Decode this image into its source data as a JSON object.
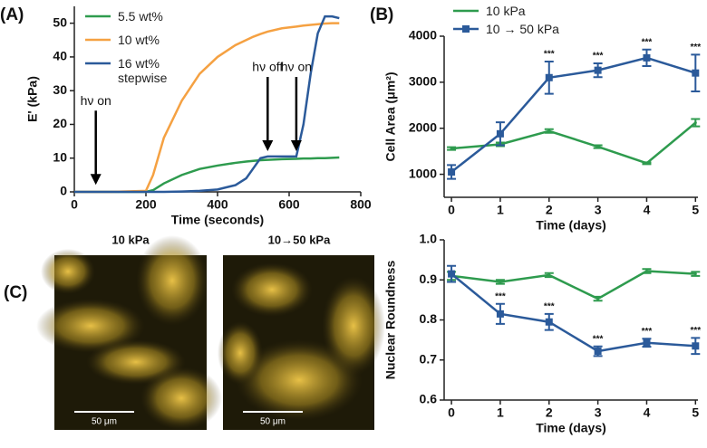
{
  "chart_data": [
    {
      "type": "line",
      "panel": "(A)",
      "xlabel": "Time (seconds)",
      "ylabel": "E' (kPa)",
      "x": [
        0,
        100,
        200,
        220,
        250,
        300,
        350,
        400,
        450,
        480,
        500,
        520,
        540,
        580,
        620,
        640,
        660,
        680,
        700,
        720,
        740
      ],
      "series": [
        {
          "name": "5.5 wt%",
          "color": "#2e9b4e",
          "values": [
            0,
            0,
            0,
            0.5,
            2.5,
            5,
            6.8,
            7.8,
            8.6,
            9,
            9.2,
            9.4,
            9.5,
            9.7,
            9.8,
            9.9,
            9.9,
            10,
            10,
            10.1,
            10.2
          ]
        },
        {
          "name": "10 wt%",
          "color": "#f5a142",
          "values": [
            0,
            0,
            0.3,
            5,
            16,
            27,
            35,
            40,
            43.5,
            45,
            46,
            46.8,
            47.5,
            48.5,
            49,
            49.3,
            49.5,
            49.7,
            49.9,
            50,
            50
          ]
        },
        {
          "name": "16 wt% stepwise",
          "color": "#2b5a9a",
          "values": [
            0,
            0,
            0,
            0,
            0,
            0.1,
            0.3,
            0.7,
            2,
            4,
            7,
            10,
            10.5,
            10.5,
            10.5,
            20,
            35,
            47,
            52,
            52,
            51.5
          ]
        }
      ],
      "annotations": [
        {
          "text": "hν on",
          "x": 60,
          "y": 1
        },
        {
          "text": "hν off",
          "x": 540,
          "y": 11
        },
        {
          "text": "hν on",
          "x": 620,
          "y": 11
        }
      ],
      "xlim": [
        0,
        800
      ],
      "xticks": [
        0,
        200,
        400,
        600,
        800
      ],
      "ylim": [
        0,
        55
      ],
      "yticks": [
        0,
        10,
        20,
        30,
        40,
        50
      ],
      "legend": "upper left"
    },
    {
      "type": "errorline",
      "panel": "(B)",
      "xlabel": "Time (days)",
      "ylabel": "Cell Area (μm²)",
      "x": [
        0,
        1,
        2,
        3,
        4,
        5
      ],
      "series": [
        {
          "name": "10 kPa",
          "color": "#2e9b4e",
          "values": [
            1560,
            1650,
            1940,
            1600,
            1240,
            2120
          ],
          "errors": [
            30,
            40,
            40,
            30,
            20,
            80
          ]
        },
        {
          "name": "10 → 50 kPa",
          "color": "#2b5a9a",
          "values": [
            1050,
            1880,
            3100,
            3260,
            3530,
            3200
          ],
          "errors": [
            150,
            250,
            350,
            150,
            180,
            400
          ],
          "significance": [
            null,
            null,
            "***",
            "***",
            "***",
            "***"
          ]
        }
      ],
      "xlim": [
        -0.15,
        5.05
      ],
      "xticks": [
        0,
        1,
        2,
        3,
        4,
        5
      ],
      "ylim": [
        500,
        4000
      ],
      "yticks": [
        1000,
        2000,
        3000,
        4000
      ],
      "legend": "above"
    },
    {
      "type": "errorline",
      "xlabel": "Time (days)",
      "ylabel": "Nuclear Roundness",
      "x": [
        0,
        1,
        2,
        3,
        4,
        5
      ],
      "series": [
        {
          "color": "#2e9b4e",
          "values": [
            0.91,
            0.895,
            0.912,
            0.853,
            0.922,
            0.915
          ],
          "errors": [
            0.01,
            0.005,
            0.005,
            0.005,
            0.005,
            0.005
          ]
        },
        {
          "color": "#2b5a9a",
          "values": [
            0.915,
            0.815,
            0.795,
            0.722,
            0.743,
            0.735
          ],
          "errors": [
            0.02,
            0.025,
            0.02,
            0.012,
            0.01,
            0.02
          ],
          "significance": [
            null,
            "***",
            "***",
            "***",
            "***",
            "***"
          ]
        }
      ],
      "xlim": [
        -0.15,
        5.05
      ],
      "xticks": [
        0,
        1,
        2,
        3,
        4,
        5
      ],
      "ylim": [
        0.6,
        1.0
      ],
      "yticks": [
        0.6,
        0.7,
        0.8,
        0.9,
        {
          "value": 1.0,
          "label": "1.0"
        }
      ]
    }
  ],
  "panel_c": {
    "label": "(C)",
    "images": [
      {
        "title": "10 kPa",
        "scale_bar": "50 μm"
      },
      {
        "title": "10→50 kPa",
        "scale_bar": "50 μm"
      }
    ]
  }
}
